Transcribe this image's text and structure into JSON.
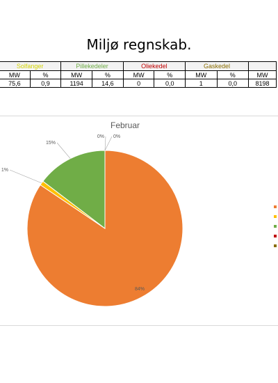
{
  "page": {
    "title": "Miljø regnskab."
  },
  "table": {
    "groups": [
      {
        "label": "Solfanger",
        "color": "#d4d400"
      },
      {
        "label": "Pillekedeler",
        "color": "#70ad47"
      },
      {
        "label": "Oliekedel",
        "color": "#c00000"
      },
      {
        "label": "Gaskedel",
        "color": "#8a6d00"
      },
      {
        "label": "",
        "color": "#000000"
      }
    ],
    "sub_headers": [
      "MW",
      "%",
      "MW",
      "%",
      "MW",
      "%",
      "MW",
      "%",
      "MW"
    ],
    "values": [
      "75,6",
      "0,9",
      "1194",
      "14,6",
      "0",
      "0,0",
      "1",
      "0,0",
      "8198"
    ]
  },
  "chart_data": {
    "type": "pie",
    "title": "Februar",
    "slices": [
      {
        "label": "84%",
        "value": 84,
        "color": "#ed7d31"
      },
      {
        "label": "1%",
        "value": 0.9,
        "color": "#ffc000"
      },
      {
        "label": "15%",
        "value": 14.6,
        "color": "#70ad47"
      },
      {
        "label": "0%",
        "value": 0.0,
        "color": "#c00000"
      },
      {
        "label": "0%",
        "value": 0.0,
        "color": "#8a6d00"
      }
    ],
    "legend": {
      "placement": "right",
      "colors": [
        "#ed7d31",
        "#ffc000",
        "#70ad47",
        "#c00000",
        "#8a6d00"
      ]
    }
  }
}
